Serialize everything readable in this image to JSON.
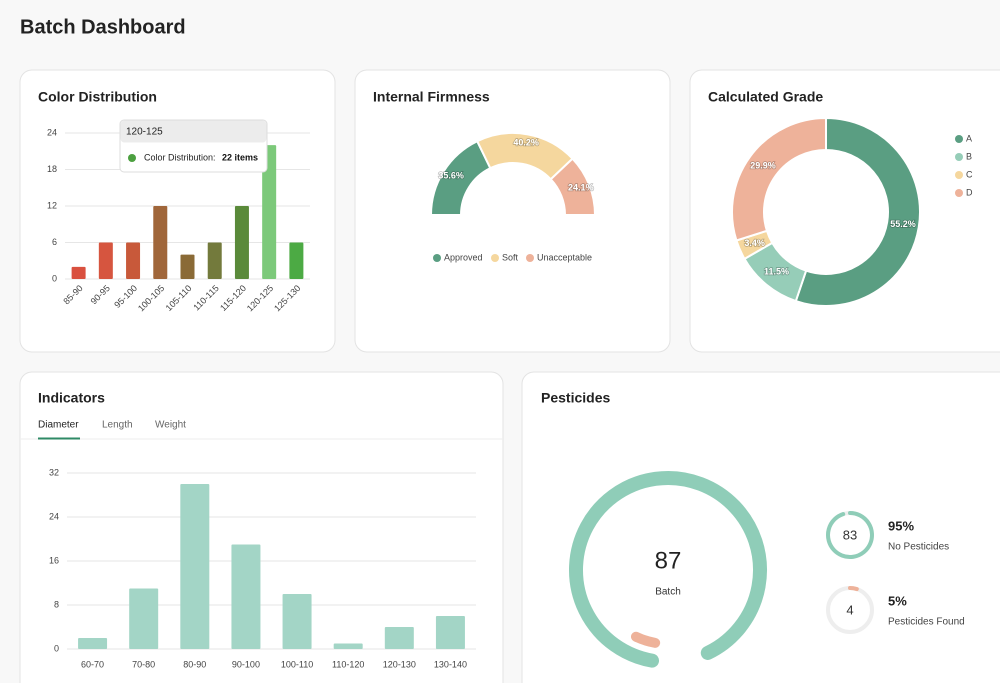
{
  "header": {
    "title": "Batch Dashboard"
  },
  "color_distribution": {
    "type": "bar",
    "title": "Color Distribution",
    "categories": [
      "85-90",
      "90-95",
      "95-100",
      "100-105",
      "105-110",
      "110-115",
      "115-120",
      "120-125",
      "125-130"
    ],
    "values": [
      2,
      6,
      6,
      12,
      4,
      6,
      12,
      22,
      6
    ],
    "colors": [
      "#d9503f",
      "#d6553f",
      "#c8593a",
      "#a0663a",
      "#8a6a36",
      "#737a3c",
      "#5a8a3a",
      "#7cc97a",
      "#4caa44"
    ],
    "ylim": [
      0,
      24
    ],
    "yticks": [
      0,
      6,
      12,
      18,
      24
    ],
    "grid": true,
    "tooltip": {
      "title": "120-125",
      "label": "Color Distribution:",
      "value_label": "22 items",
      "color": "#4ca040"
    }
  },
  "internal_firmness": {
    "type": "half-donut",
    "title": "Internal Firmness",
    "categories": [
      "Approved",
      "Soft",
      "Unacceptable"
    ],
    "values": [
      35.6,
      40.2,
      24.1
    ],
    "value_labels": [
      "35.6%",
      "40.2%",
      "24.1%"
    ],
    "colors": [
      "#5a9e82",
      "#f5d79e",
      "#eeb29a"
    ]
  },
  "calculated_grade": {
    "type": "donut",
    "title": "Calculated Grade",
    "categories": [
      "A",
      "B",
      "C",
      "D"
    ],
    "values": [
      55.2,
      11.5,
      3.4,
      29.9
    ],
    "value_labels": [
      "55.2%",
      "11.5%",
      "3.4%",
      "29.9%"
    ],
    "colors": [
      "#5a9e82",
      "#96cdb8",
      "#f5d79e",
      "#eeb29a"
    ]
  },
  "indicators": {
    "type": "bar",
    "title": "Indicators",
    "tabs": [
      "Diameter",
      "Length",
      "Weight"
    ],
    "categories": [
      "60-70",
      "70-80",
      "80-90",
      "90-100",
      "100-110",
      "110-120",
      "120-130",
      "130-140"
    ],
    "values": [
      2,
      11,
      30,
      19,
      10,
      1,
      4,
      6
    ],
    "color": "#a3d5c6",
    "ylim": [
      0,
      32
    ],
    "yticks": [
      0,
      8,
      16,
      24,
      32
    ],
    "grid": true
  },
  "pesticides": {
    "type": "gauge",
    "title": "Pesticides",
    "total": 87,
    "total_label": "Batch",
    "items": [
      {
        "value": 83,
        "percent": 95,
        "percent_label": "95%",
        "label": "No Pesticides",
        "color": "#8fcdb8"
      },
      {
        "value": 4,
        "percent": 5,
        "percent_label": "5%",
        "label": "Pesticides Found",
        "color": "#eeb29a"
      }
    ]
  }
}
